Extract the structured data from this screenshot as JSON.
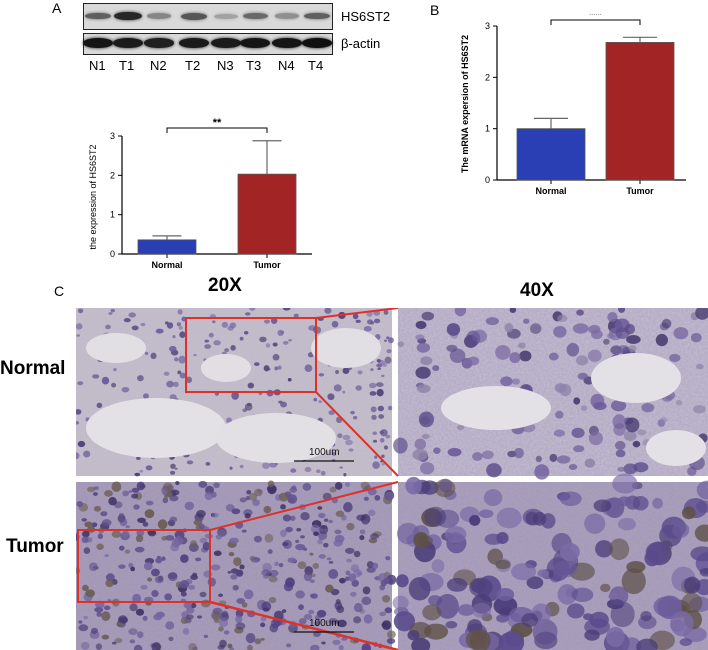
{
  "panels": {
    "a": "A",
    "b": "B",
    "c": "C"
  },
  "western_blot": {
    "targets": [
      "HS6ST2",
      "β-actin"
    ],
    "lanes": [
      "N1",
      "T1",
      "N2",
      "T2",
      "N3",
      "T3",
      "N4",
      "T4"
    ],
    "hs6st2_band_intensity": [
      0.55,
      0.85,
      0.35,
      0.6,
      0.2,
      0.5,
      0.3,
      0.55
    ],
    "actin_band_intensity": [
      0.9,
      0.85,
      0.8,
      0.85,
      0.85,
      0.9,
      0.9,
      0.95
    ]
  },
  "chart_data": [
    {
      "type": "bar",
      "title": "",
      "xlabel": "",
      "ylabel": "the  expression of HS6ST2",
      "categories": [
        "Normal",
        "Tumor"
      ],
      "values": [
        0.36,
        2.03
      ],
      "errors": [
        0.1,
        0.85
      ],
      "ylim": [
        0,
        3
      ],
      "yticks": [
        "0",
        "1",
        "2",
        "3"
      ],
      "colors": [
        "#2b3fb5",
        "#a32424"
      ],
      "significance": "**",
      "grid": false
    },
    {
      "type": "bar",
      "title": "",
      "xlabel": "",
      "ylabel": "The mRNA expersion of HS6ST2",
      "categories": [
        "Normal",
        "Tumor"
      ],
      "values": [
        1.0,
        2.68
      ],
      "errors": [
        0.2,
        0.1
      ],
      "ylim": [
        0,
        3
      ],
      "yticks": [
        "0",
        "1",
        "2",
        "3"
      ],
      "colors": [
        "#2b3fb5",
        "#a32424"
      ],
      "significance": "***",
      "grid": false
    }
  ],
  "ihc": {
    "col_headers": [
      "20X",
      "40X"
    ],
    "row_headers": [
      "Normal",
      "Tumor"
    ],
    "scale_bar_label": "100um",
    "highlight_color": "#e0302a"
  }
}
